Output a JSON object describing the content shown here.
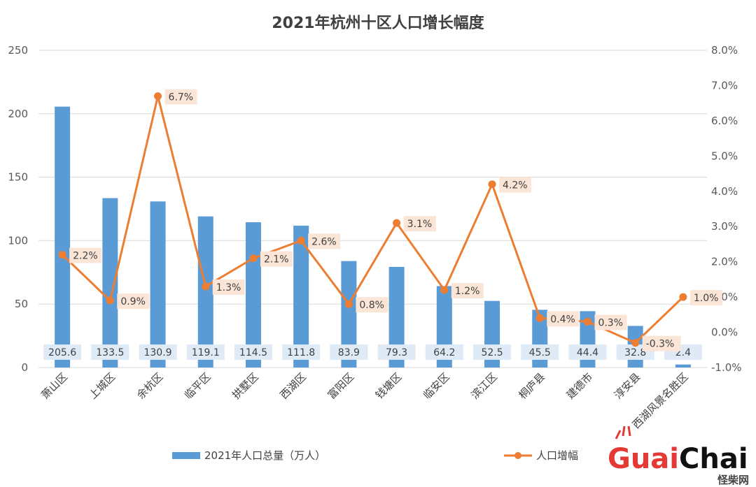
{
  "chart_data": {
    "type": "bar",
    "title": "2021年杭州十区人口增长幅度",
    "categories": [
      "萧山区",
      "上城区",
      "余杭区",
      "临平区",
      "拱墅区",
      "西湖区",
      "富阳区",
      "钱塘区",
      "临安区",
      "滨江区",
      "桐庐县",
      "建德市",
      "淳安县",
      "西湖风景名胜区"
    ],
    "series": [
      {
        "name": "2021年人口总量（万人）",
        "type": "bar",
        "axis": "left",
        "values": [
          205.6,
          133.5,
          130.9,
          119.1,
          114.5,
          111.8,
          83.9,
          79.3,
          64.2,
          52.5,
          45.5,
          44.4,
          32.8,
          2.4
        ],
        "labels": [
          "205.6",
          "133.5",
          "130.9",
          "119.1",
          "114.5",
          "111.8",
          "83.9",
          "79.3",
          "64.2",
          "52.5",
          "45.5",
          "44.4",
          "32.8",
          "2.4"
        ]
      },
      {
        "name": "人口增幅",
        "type": "line",
        "axis": "right",
        "values": [
          2.2,
          0.9,
          6.7,
          1.3,
          2.1,
          2.6,
          0.8,
          3.1,
          1.2,
          4.2,
          0.4,
          0.3,
          -0.3,
          1.0
        ],
        "labels": [
          "2.2%",
          "0.9%",
          "6.7%",
          "1.3%",
          "2.1%",
          "2.6%",
          "0.8%",
          "3.1%",
          "1.2%",
          "4.2%",
          "0.4%",
          "0.3%",
          "-0.3%",
          "1.0%"
        ]
      }
    ],
    "y_left": {
      "min": 0,
      "max": 250,
      "ticks": [
        "0",
        "50",
        "100",
        "150",
        "200",
        "250"
      ]
    },
    "y_right": {
      "min": -1,
      "max": 8,
      "ticks": [
        "-1.0%",
        "0.0%",
        "1.0%",
        "2.0%",
        "3.0%",
        "4.0%",
        "5.0%",
        "6.0%",
        "7.0%",
        "8.0%"
      ]
    },
    "grid": true,
    "legend_position": "bottom"
  },
  "colors": {
    "bar": "#5B9BD5",
    "line": "#ED7D31",
    "bar_label_bg": "#DEEBF7",
    "line_label_bg": "#FBE5D6",
    "grid": "#D9D9D9"
  },
  "logo": {
    "text_a": "Guai",
    "text_b": "Chai",
    "sub": "怪柴网"
  }
}
